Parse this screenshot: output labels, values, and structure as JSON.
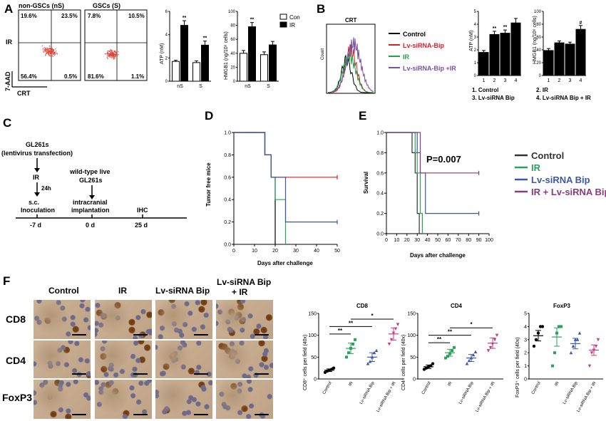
{
  "panels": {
    "A": {
      "letter": "A",
      "flow": {
        "row_label": "IR",
        "y_label": "7-AAD",
        "x_label": "CRT",
        "plots": [
          {
            "title": "non-GSCs (nS)",
            "ul": "19.6%",
            "ur": "23.5%",
            "ll": "56.4%",
            "lr": "0.5%"
          },
          {
            "title": "GSCs (S)",
            "ul": "7.8%",
            "ur": "10.5%",
            "ll": "81.6%",
            "lr": "1.1%"
          }
        ]
      },
      "atp": {
        "ylabel": "ATP (nM)",
        "yticks": [
          "0",
          "2",
          "4",
          "6"
        ],
        "categories": [
          "nS",
          "S"
        ]
      },
      "hmgb1": {
        "ylabel": "HMGB1 (ng/10⁶ cells)",
        "yticks": [
          "0",
          "20",
          "40",
          "60",
          "80",
          "100"
        ],
        "categories": [
          "nS",
          "S"
        ]
      },
      "legend": [
        "Con",
        "IR"
      ],
      "sig": "**"
    },
    "B": {
      "letter": "B",
      "hist_title": "CRT",
      "hist_ylabel": "Count",
      "legend": [
        {
          "label": "Control",
          "color": "#000000"
        },
        {
          "label": "Lv-siRNA-Bip",
          "color": "#d81e28"
        },
        {
          "label": "IR",
          "color": "#22a045"
        },
        {
          "label": "Lv-siRNA-Bip +IR",
          "color": "#7a4fa0"
        }
      ],
      "atp": {
        "ylabel": "ATP (nM)",
        "yticks": [
          "0",
          "1",
          "2",
          "3",
          "4",
          "5"
        ],
        "categories": [
          "1",
          "2",
          "3",
          "4"
        ]
      },
      "hmgb1": {
        "ylabel": "HMGB1 (ng/10⁶ cells)",
        "yticks": [
          "0",
          "20",
          "40",
          "60",
          "80",
          "100"
        ],
        "categories": [
          "1",
          "2",
          "3",
          "4"
        ]
      },
      "key": [
        "1. Control",
        "2. IR",
        "3. Lv-siRNA Bip",
        "4. Lv-siRNA Bip + IR"
      ],
      "sig_atp": "**",
      "sig_hmgb1": "#"
    },
    "C": {
      "letter": "C",
      "step1": "GL261s",
      "step1b": "(lentivirus transfection)",
      "step2": "IR",
      "step3": "24h",
      "step4": "s.c.",
      "step4b": "Inoculation",
      "wt1": "wild-type live",
      "wt2": "GL261s",
      "ic1": "intracranial",
      "ic2": "implantation",
      "ihc": "IHC",
      "timeline": [
        "-7 d",
        "0 d",
        "25 d"
      ]
    },
    "D": {
      "letter": "D",
      "ylabel": "Tumor free mice",
      "xlabel": "Days after challenge",
      "xticks": [
        "0",
        "10",
        "20",
        "30",
        "40",
        "50"
      ],
      "yticks": [
        "0.0",
        "0.2",
        "0.4",
        "0.6",
        "0.8",
        "1.0"
      ]
    },
    "E": {
      "letter": "E",
      "ylabel": "Survival",
      "xlabel": "Days after challenge",
      "xticks": [
        "0",
        "10",
        "20",
        "30",
        "40",
        "50",
        "60",
        "70",
        "80",
        "90",
        "100"
      ],
      "yticks": [
        "0.0",
        "0.2",
        "0.4",
        "0.6",
        "0.8",
        "1.0"
      ],
      "pvalue": "P=0.007",
      "legend": [
        {
          "label": "Control",
          "color": "#333333"
        },
        {
          "label": "IR",
          "color": "#2aa35a"
        },
        {
          "label": "Lv-siRNA Bip",
          "color": "#3d57a8"
        },
        {
          "label": "IR + Lv-siRNA Bip",
          "color": "#8a3b7d"
        }
      ]
    },
    "F": {
      "letter": "F",
      "columns": [
        "Control",
        "IR",
        "Lv-siRNA Bip",
        "Lv-siRNA Bip",
        "+ IR"
      ],
      "rows": [
        "CD8",
        "CD4",
        "FoxP3"
      ],
      "groups": [
        "Control",
        "IR",
        "Lv-siRNA Bip",
        "Lv-siRNA Bip + IR"
      ],
      "cd8": {
        "title": "CD8",
        "ylabel": "CD8⁺ cells per field (40x)",
        "yticks": [
          "0",
          "50",
          "100",
          "150"
        ]
      },
      "cd4": {
        "title": "CD4",
        "ylabel": "CD4⁺ cells per field (40x)",
        "yticks": [
          "0",
          "50",
          "100",
          "150"
        ]
      },
      "foxp3": {
        "title": "FoxP3",
        "ylabel": "FoxP3⁺ cells per field (40x)",
        "yticks": [
          "0",
          "1",
          "2",
          "3",
          "4",
          "5"
        ]
      },
      "sig": [
        "**",
        "**",
        "*"
      ]
    }
  },
  "chart_data": [
    {
      "type": "scatter",
      "id": "A-flow",
      "x_label": "CRT",
      "y_label": "7-AAD",
      "quadrants": [
        {
          "plot": "non-GSCs (nS)",
          "ul": 19.6,
          "ur": 23.5,
          "ll": 56.4,
          "lr": 0.5
        },
        {
          "plot": "GSCs (S)",
          "ul": 7.8,
          "ur": 10.5,
          "ll": 81.6,
          "lr": 1.1
        }
      ]
    },
    {
      "type": "bar",
      "id": "A-atp",
      "ylabel": "ATP (nM)",
      "categories": [
        "nS",
        "S"
      ],
      "ylim": [
        0,
        6
      ],
      "series": [
        {
          "name": "Con",
          "values": [
            1.7,
            1.6
          ],
          "err": [
            0.1,
            0.15
          ]
        },
        {
          "name": "IR",
          "values": [
            4.8,
            3.1
          ],
          "err": [
            0.4,
            0.35
          ]
        }
      ]
    },
    {
      "type": "bar",
      "id": "A-hmgb1",
      "ylabel": "HMGB1 (ng/10⁶ cells)",
      "categories": [
        "nS",
        "S"
      ],
      "ylim": [
        0,
        100
      ],
      "series": [
        {
          "name": "Con",
          "values": [
            40,
            38
          ],
          "err": [
            4,
            4
          ]
        },
        {
          "name": "IR",
          "values": [
            78,
            52
          ],
          "err": [
            6,
            5
          ]
        }
      ]
    },
    {
      "type": "bar",
      "id": "B-atp",
      "ylabel": "ATP (nM)",
      "categories": [
        "1",
        "2",
        "3",
        "4"
      ],
      "ylim": [
        0,
        5
      ],
      "values": [
        1.8,
        3.2,
        3.3,
        4.1
      ],
      "err": [
        0.15,
        0.25,
        0.25,
        0.35
      ]
    },
    {
      "type": "bar",
      "id": "B-hmgb1",
      "ylabel": "HMGB1 (ng/10⁶ cells)",
      "categories": [
        "1",
        "2",
        "3",
        "4"
      ],
      "ylim": [
        0,
        100
      ],
      "values": [
        39,
        51,
        49,
        72
      ],
      "err": [
        3,
        3,
        3,
        6
      ]
    },
    {
      "type": "line",
      "id": "D",
      "xlabel": "Days after challenge",
      "ylabel": "Tumor free mice",
      "xlim": [
        0,
        50
      ],
      "ylim": [
        0,
        1
      ],
      "series": [
        {
          "color": "#000000",
          "x": [
            0,
            15,
            15,
            18,
            18,
            20,
            20
          ],
          "y": [
            1,
            1,
            0.8,
            0.8,
            0.6,
            0.6,
            0
          ]
        },
        {
          "color": "#d81e28",
          "x": [
            0,
            15,
            15,
            18,
            18,
            50
          ],
          "y": [
            1,
            1,
            0.8,
            0.8,
            0.6,
            0.6
          ]
        },
        {
          "color": "#2aa35a",
          "x": [
            0,
            15,
            15,
            18,
            18,
            20,
            20,
            25,
            25
          ],
          "y": [
            1,
            1,
            0.8,
            0.8,
            0.6,
            0.6,
            0.4,
            0.4,
            0
          ]
        },
        {
          "color": "#3d57a8",
          "x": [
            0,
            15,
            15,
            18,
            18,
            25,
            25,
            50
          ],
          "y": [
            1,
            1,
            0.8,
            0.8,
            0.6,
            0.6,
            0.2,
            0.2
          ]
        }
      ]
    },
    {
      "type": "line",
      "id": "E",
      "xlabel": "Days after challenge",
      "ylabel": "Survival",
      "xlim": [
        0,
        100
      ],
      "ylim": [
        0,
        1
      ],
      "series": [
        {
          "name": "Control",
          "color": "#333333",
          "x": [
            0,
            25,
            25,
            28,
            28,
            30,
            30,
            32,
            32
          ],
          "y": [
            1,
            1,
            0.8,
            0.8,
            0.6,
            0.6,
            0.2,
            0.2,
            0
          ]
        },
        {
          "name": "IR",
          "color": "#2aa35a",
          "x": [
            0,
            28,
            28,
            30,
            30,
            33,
            33,
            35,
            35
          ],
          "y": [
            1,
            1,
            0.8,
            0.8,
            0.6,
            0.6,
            0.2,
            0.2,
            0
          ]
        },
        {
          "name": "Lv-siRNA Bip",
          "color": "#3d57a8",
          "x": [
            0,
            30,
            30,
            33,
            33,
            38,
            38,
            90
          ],
          "y": [
            1,
            1,
            0.8,
            0.8,
            0.6,
            0.6,
            0.2,
            0.2
          ]
        },
        {
          "name": "IR + Lv-siRNA Bip",
          "color": "#8a3b7d",
          "x": [
            0,
            33,
            33,
            90
          ],
          "y": [
            1,
            1,
            0.6,
            0.6
          ]
        }
      ]
    },
    {
      "type": "scatter",
      "id": "F-cd8",
      "ylabel": "CD8⁺ cells per field (40x)",
      "ylim": [
        0,
        150
      ],
      "categories": [
        "Control",
        "IR",
        "Lv-siRNA Bip",
        "Lv-siRNA Bip + IR"
      ],
      "points": [
        [
          15,
          18,
          20,
          22,
          25
        ],
        [
          50,
          60,
          70,
          80,
          90
        ],
        [
          35,
          40,
          50,
          60,
          65
        ],
        [
          80,
          90,
          105,
          115,
          125
        ]
      ],
      "mean": [
        20,
        70,
        50,
        103
      ],
      "sem": [
        3,
        12,
        10,
        14
      ]
    },
    {
      "type": "scatter",
      "id": "F-cd4",
      "ylabel": "CD4⁺ cells per field (40x)",
      "ylim": [
        0,
        150
      ],
      "categories": [
        "Control",
        "IR",
        "Lv-siRNA Bip",
        "Lv-siRNA Bip + IR"
      ],
      "points": [
        [
          22,
          25,
          28,
          30,
          35
        ],
        [
          48,
          52,
          58,
          65,
          72
        ],
        [
          35,
          42,
          48,
          55,
          62
        ],
        [
          65,
          72,
          80,
          90,
          100
        ]
      ],
      "mean": [
        28,
        60,
        48,
        82
      ],
      "sem": [
        4,
        8,
        8,
        12
      ]
    },
    {
      "type": "scatter",
      "id": "F-foxp3",
      "ylabel": "FoxP3⁺ cells per field (40x)",
      "ylim": [
        0,
        5
      ],
      "categories": [
        "Control",
        "IR",
        "Lv-siRNA Bip",
        "Lv-siRNA Bip + IR"
      ],
      "points": [
        [
          2.5,
          3,
          3.5,
          4,
          4
        ],
        [
          1,
          2,
          3.5,
          4,
          4
        ],
        [
          2,
          2.5,
          3,
          3,
          3.5
        ],
        [
          1,
          2,
          2.2,
          2.5,
          3
        ]
      ],
      "mean": [
        3.3,
        3.2,
        2.7,
        2.2
      ],
      "sem": [
        0.4,
        0.7,
        0.4,
        0.4
      ]
    }
  ]
}
